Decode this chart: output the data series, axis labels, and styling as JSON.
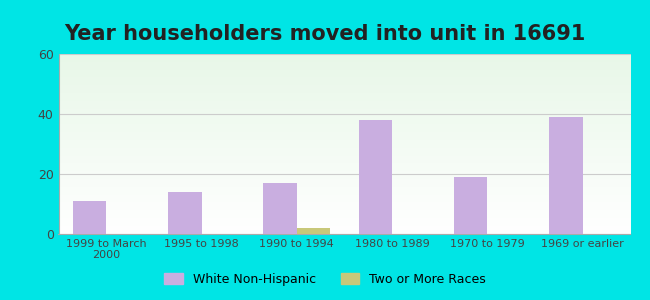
{
  "title": "Year householders moved into unit in 16691",
  "categories": [
    "1999 to March\n2000",
    "1995 to 1998",
    "1990 to 1994",
    "1980 to 1989",
    "1970 to 1979",
    "1969 or earlier"
  ],
  "white_non_hispanic": [
    11,
    14,
    17,
    38,
    19,
    39
  ],
  "two_or_more_races": [
    0,
    0,
    2,
    0,
    0,
    0
  ],
  "bar_color_white": "#c9aee0",
  "bar_color_two": "#c8c87a",
  "ylim": [
    0,
    60
  ],
  "yticks": [
    0,
    20,
    40,
    60
  ],
  "background_outer": "#00e5e5",
  "background_inner_top": "#e8f5e8",
  "background_inner_bottom": "#ffffff",
  "grid_color": "#cccccc",
  "title_fontsize": 15,
  "legend_labels": [
    "White Non-Hispanic",
    "Two or More Races"
  ],
  "bar_width": 0.35
}
